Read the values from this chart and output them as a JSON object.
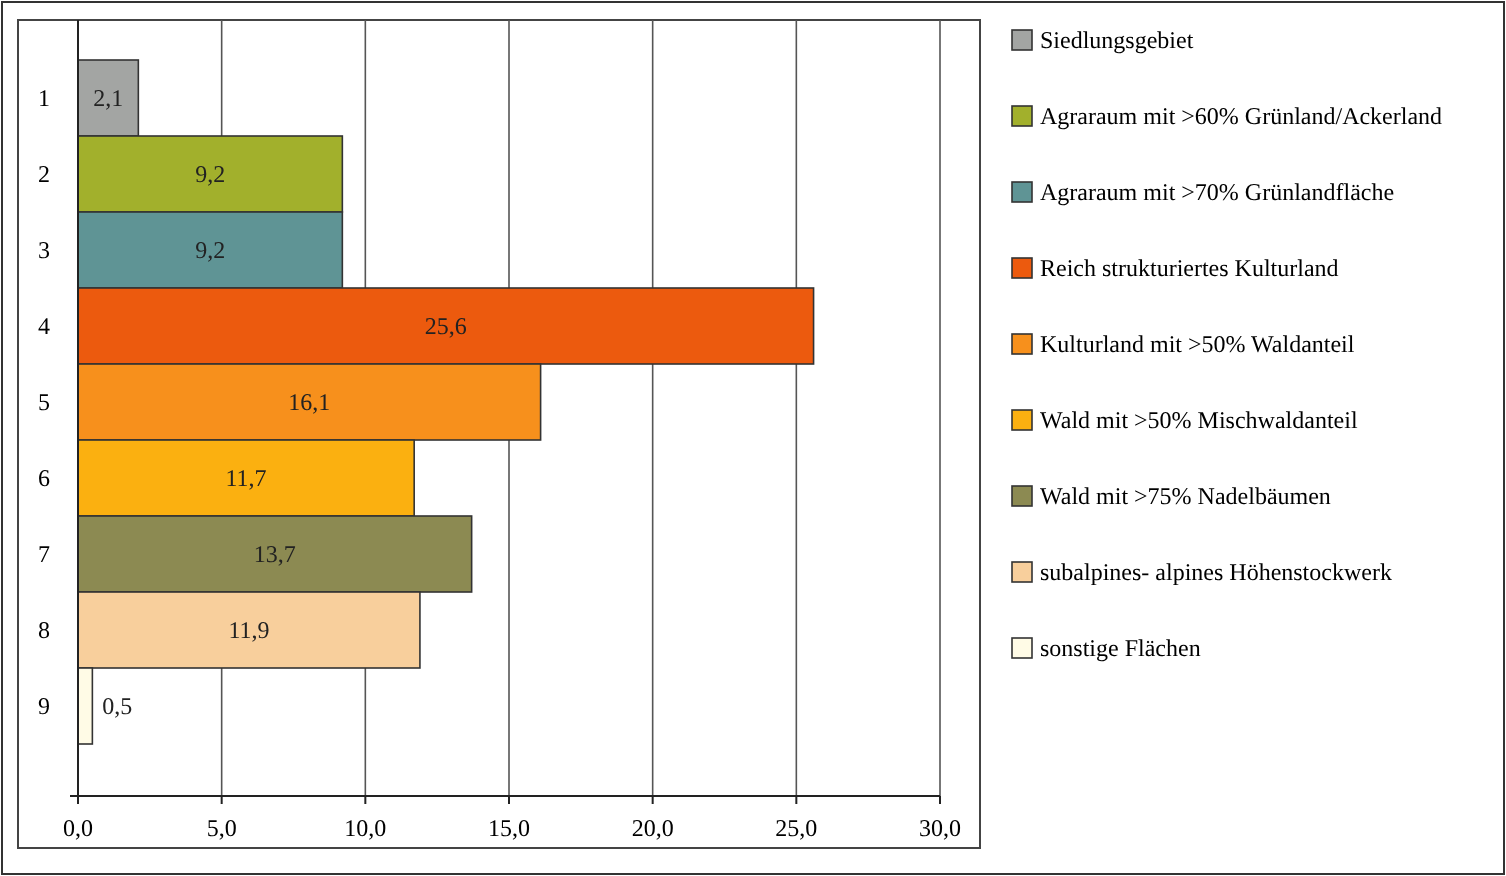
{
  "chart_data": {
    "type": "bar",
    "orientation": "horizontal",
    "stacked": true,
    "categories": [
      "1",
      "2",
      "3",
      "4",
      "5",
      "6",
      "7",
      "8",
      "9"
    ],
    "series": [
      {
        "name": "Siedlungsgebiet",
        "color": "#a3a5a3",
        "values": [
          2.1,
          null,
          null,
          null,
          null,
          null,
          null,
          null,
          null
        ],
        "value_labels": [
          "2,1",
          null,
          null,
          null,
          null,
          null,
          null,
          null,
          null
        ]
      },
      {
        "name": "Agraraum mit >60% Grünland/Ackerland",
        "color": "#a2b02c",
        "values": [
          null,
          9.2,
          null,
          null,
          null,
          null,
          null,
          null,
          null
        ],
        "value_labels": [
          null,
          "9,2",
          null,
          null,
          null,
          null,
          null,
          null,
          null
        ]
      },
      {
        "name": "Agraraum mit >70% Grünlandfläche",
        "color": "#5f9495",
        "values": [
          null,
          null,
          9.2,
          null,
          null,
          null,
          null,
          null,
          null
        ],
        "value_labels": [
          null,
          null,
          "9,2",
          null,
          null,
          null,
          null,
          null,
          null
        ]
      },
      {
        "name": "Reich strukturiertes Kulturland",
        "color": "#ec5a0e",
        "values": [
          null,
          null,
          null,
          25.6,
          null,
          null,
          null,
          null,
          null
        ],
        "value_labels": [
          null,
          null,
          null,
          "25,6",
          null,
          null,
          null,
          null,
          null
        ]
      },
      {
        "name": "Kulturland mit >50% Waldanteil",
        "color": "#f7901c",
        "values": [
          null,
          null,
          null,
          null,
          16.1,
          null,
          null,
          null,
          null
        ],
        "value_labels": [
          null,
          null,
          null,
          null,
          "16,1",
          null,
          null,
          null,
          null
        ]
      },
      {
        "name": "Wald mit >50% Mischwaldanteil",
        "color": "#fbb010",
        "values": [
          null,
          null,
          null,
          null,
          null,
          11.7,
          null,
          null,
          null
        ],
        "value_labels": [
          null,
          null,
          null,
          null,
          null,
          "11,7",
          null,
          null,
          null
        ]
      },
      {
        "name": "Wald mit >75% Nadelbäumen",
        "color": "#8c8a52",
        "values": [
          null,
          null,
          null,
          null,
          null,
          null,
          13.7,
          null,
          null
        ],
        "value_labels": [
          null,
          null,
          null,
          null,
          null,
          null,
          "13,7",
          null,
          null
        ]
      },
      {
        "name": "subalpines- alpines Höhenstockwerk",
        "color": "#f8cf9c",
        "values": [
          null,
          null,
          null,
          null,
          null,
          null,
          null,
          11.9,
          null
        ],
        "value_labels": [
          null,
          null,
          null,
          null,
          null,
          null,
          null,
          "11,9",
          null
        ]
      },
      {
        "name": "sonstige Flächen",
        "color": "#fffbe6",
        "values": [
          null,
          null,
          null,
          null,
          null,
          null,
          null,
          null,
          0.5
        ],
        "value_labels": [
          null,
          null,
          null,
          null,
          null,
          null,
          null,
          null,
          "0,5"
        ]
      }
    ],
    "xlim": [
      0,
      30
    ],
    "xticks": [
      {
        "value": 0,
        "label": "0,0"
      },
      {
        "value": 5,
        "label": "5,0"
      },
      {
        "value": 10,
        "label": "10,0"
      },
      {
        "value": 15,
        "label": "15,0"
      },
      {
        "value": 20,
        "label": "20,0"
      },
      {
        "value": 25,
        "label": "25,0"
      },
      {
        "value": 30,
        "label": "30,0"
      }
    ],
    "grid": "x",
    "legend": "right"
  }
}
